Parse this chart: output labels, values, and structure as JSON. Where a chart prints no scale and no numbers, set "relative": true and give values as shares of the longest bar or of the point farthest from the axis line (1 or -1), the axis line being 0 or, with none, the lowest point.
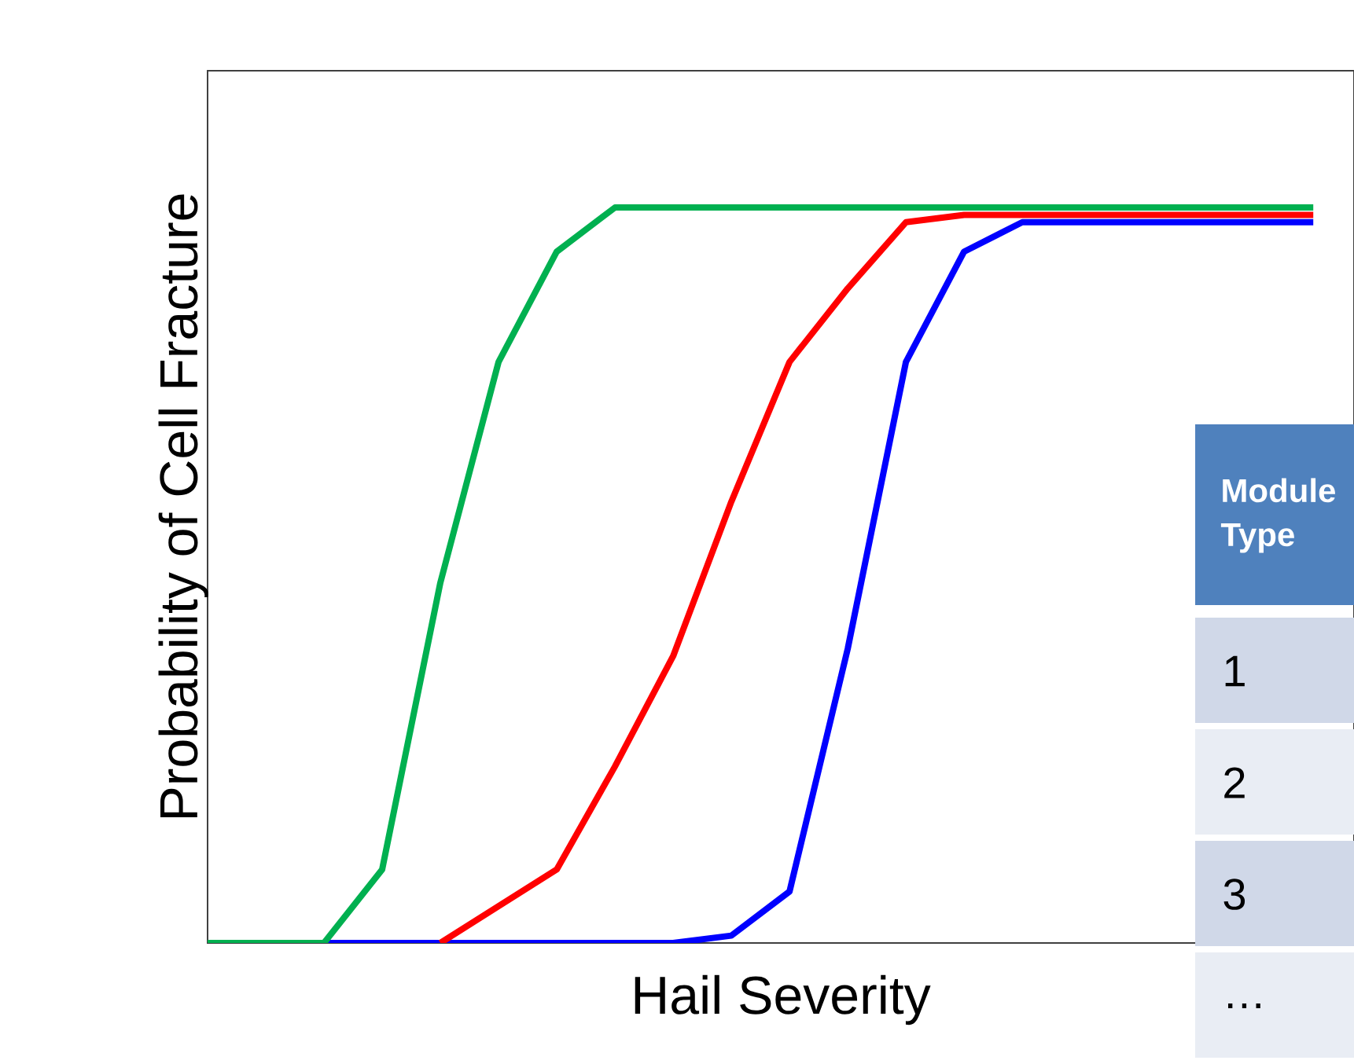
{
  "chart_data": {
    "type": "line",
    "relative": true,
    "xlabel": "Hail Severity",
    "ylabel": "Probability of Cell Fracture",
    "categories": [
      null,
      null,
      null,
      null,
      null,
      null,
      null,
      null,
      null,
      null,
      null,
      null,
      null,
      null,
      null,
      null,
      null,
      null,
      null,
      null
    ],
    "series": [
      {
        "color": "#00b050",
        "values": [
          0,
          0,
          0,
          0.1,
          0.49,
          0.79,
          0.94,
          1,
          1,
          1,
          1,
          1,
          1,
          1,
          1,
          1,
          1,
          1,
          1,
          1
        ]
      },
      {
        "color": "#ff0000",
        "values": [
          null,
          null,
          null,
          null,
          0,
          0.05,
          0.1,
          0.24,
          0.39,
          0.6,
          0.79,
          0.89,
          0.98,
          0.99,
          0.99,
          0.99,
          0.99,
          0.99,
          0.99,
          0.99
        ]
      },
      {
        "color": "#0000ff",
        "values": [
          null,
          null,
          0,
          0,
          0,
          0,
          0,
          0,
          0,
          0.01,
          0.07,
          0.4,
          0.79,
          0.94,
          0.98,
          0.98,
          0.98,
          0.98,
          0.98,
          0.98
        ]
      }
    ],
    "annotations": [
      "Module Type",
      "1",
      "2",
      "3",
      "…"
    ],
    "marker": "none",
    "line_style": "solid",
    "grid": false
  }
}
